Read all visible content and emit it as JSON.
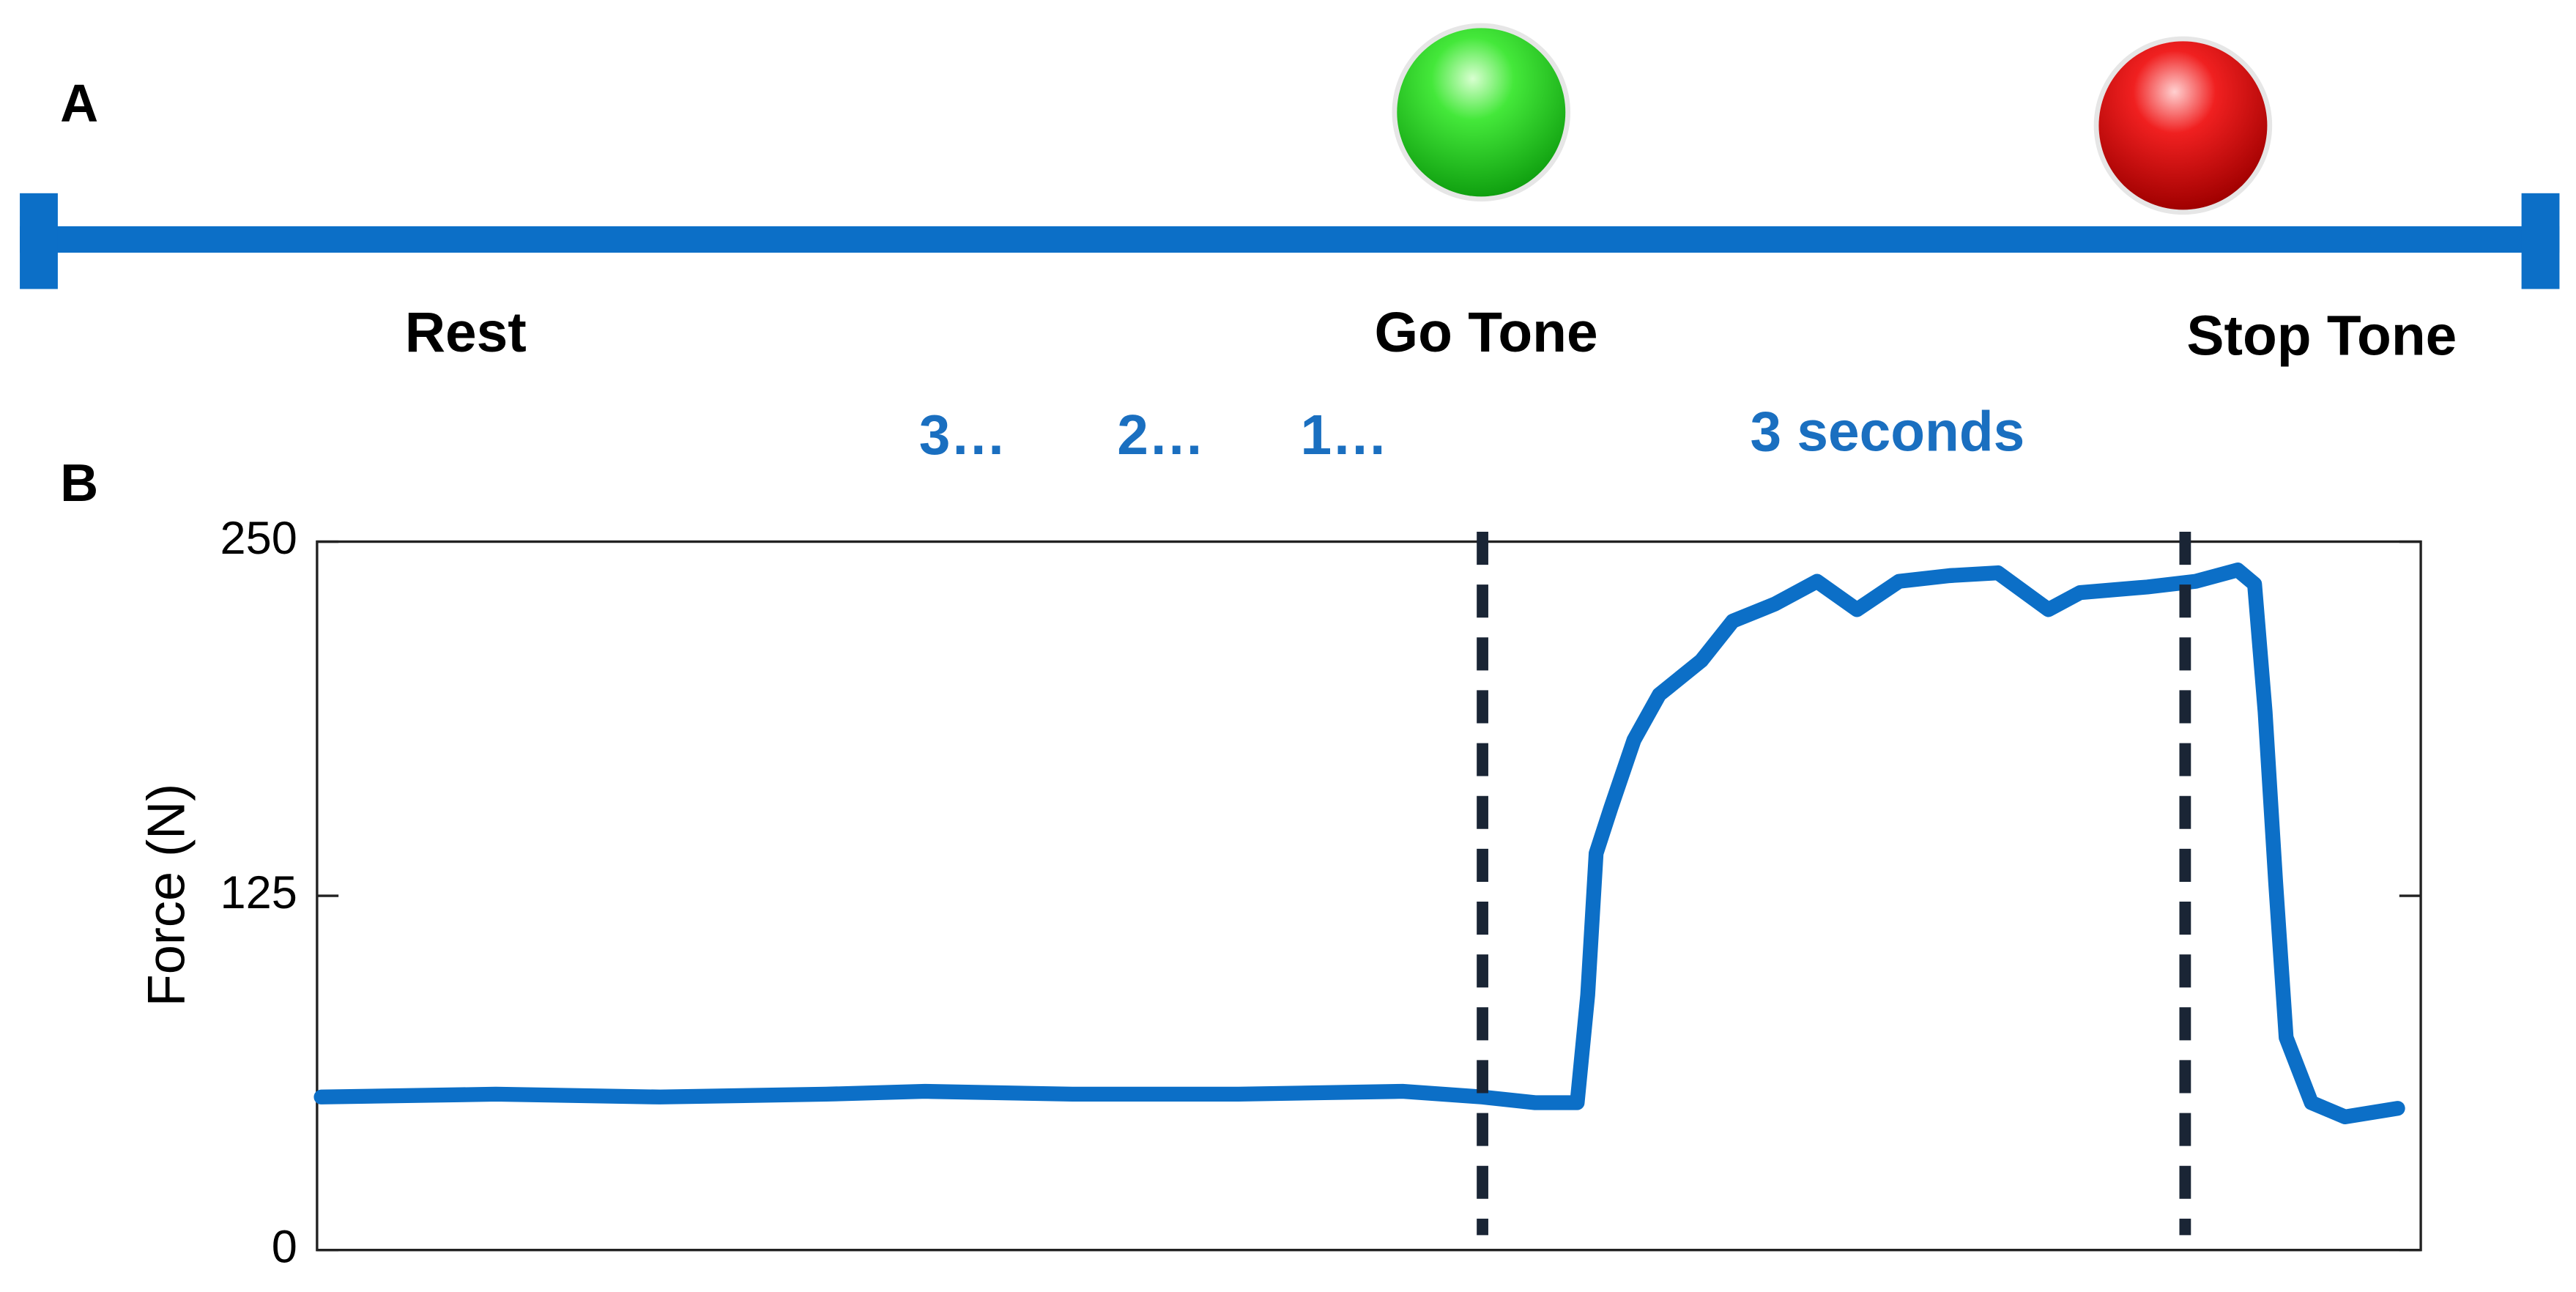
{
  "timeline": {
    "panel_label": "A",
    "labels": [
      "Rest",
      "Go Tone",
      "Stop Tone"
    ]
  },
  "chart_data": {
    "type": "line",
    "panel_label": "B",
    "y_label": "Force (N)",
    "annotations": [
      "3…",
      "2…",
      "1…",
      "3 seconds"
    ],
    "xlim": [
      0,
      100
    ],
    "ylim": [
      0,
      250
    ],
    "yticks": [
      0,
      125,
      250
    ],
    "vlines": [
      55.4,
      88.8
    ],
    "series": [
      {
        "color": "#0c6fc7",
        "x": [
          0.2,
          8.5,
          16.3,
          24.2,
          28.9,
          35.9,
          43.8,
          51.6,
          55.4,
          57.9,
          59.9,
          60.4,
          60.8,
          61.5,
          62.6,
          63.8,
          65.8,
          67.3,
          69.3,
          71.3,
          73.2,
          75.2,
          77.6,
          79.9,
          82.3,
          83.8,
          87.0,
          89.3,
          91.3,
          92.1,
          92.6,
          93.1,
          93.6,
          94.8,
          96.4,
          98.9
        ],
        "values": [
          54,
          55,
          54,
          55,
          56,
          55,
          55,
          56,
          54,
          52,
          52,
          90,
          140,
          156,
          180,
          196,
          208,
          222,
          228,
          236,
          226,
          236,
          238,
          239,
          226,
          232,
          234,
          236,
          240,
          235,
          190,
          130,
          75,
          52,
          47,
          50
        ]
      }
    ]
  }
}
